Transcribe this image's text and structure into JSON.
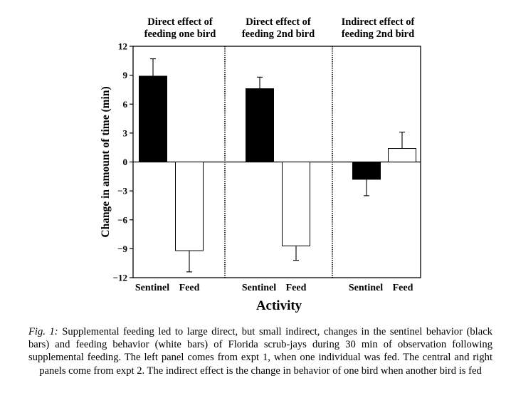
{
  "chart_data": {
    "type": "bar",
    "ylabel": "Change in amount of time (min)",
    "xlabel": "Activity",
    "ylim": [
      -12,
      12
    ],
    "yticks": [
      12,
      9,
      6,
      3,
      0,
      -3,
      -6,
      -9,
      -12
    ],
    "ytick_labels": [
      "12",
      "9",
      "6",
      "3",
      "0",
      "−3",
      "−6",
      "−9",
      "−12"
    ],
    "grid": false,
    "panels": [
      {
        "title_lines": [
          "Direct effect of",
          "feeding one bird"
        ],
        "bars": [
          {
            "category": "Sentinel",
            "value": 8.9,
            "error": 1.8,
            "fill": "#000000"
          },
          {
            "category": "Feed",
            "value": -9.2,
            "error": 2.2,
            "fill": "#ffffff"
          }
        ]
      },
      {
        "title_lines": [
          "Direct effect of",
          "feeding 2nd bird"
        ],
        "bars": [
          {
            "category": "Sentinel",
            "value": 7.6,
            "error": 1.2,
            "fill": "#000000"
          },
          {
            "category": "Feed",
            "value": -8.7,
            "error": 1.5,
            "fill": "#ffffff"
          }
        ]
      },
      {
        "title_lines": [
          "Indirect effect of",
          "feeding 2nd bird"
        ],
        "bars": [
          {
            "category": "Sentinel",
            "value": -1.8,
            "error": 1.7,
            "fill": "#000000"
          },
          {
            "category": "Feed",
            "value": 1.4,
            "error": 1.7,
            "fill": "#ffffff"
          }
        ]
      }
    ]
  },
  "caption": {
    "label": "Fig. 1:",
    "text": " Supplemental feeding led to large direct, but small indirect, changes in the sentinel behavior (black bars) and feeding behavior (white bars) of Florida scrub-jays during 30 min of observation following supplemental feeding. The left panel comes from expt 1, when one individual was fed. The central and right panels come from expt 2. The indirect effect is the change in behavior of one bird when another bird is fed"
  }
}
